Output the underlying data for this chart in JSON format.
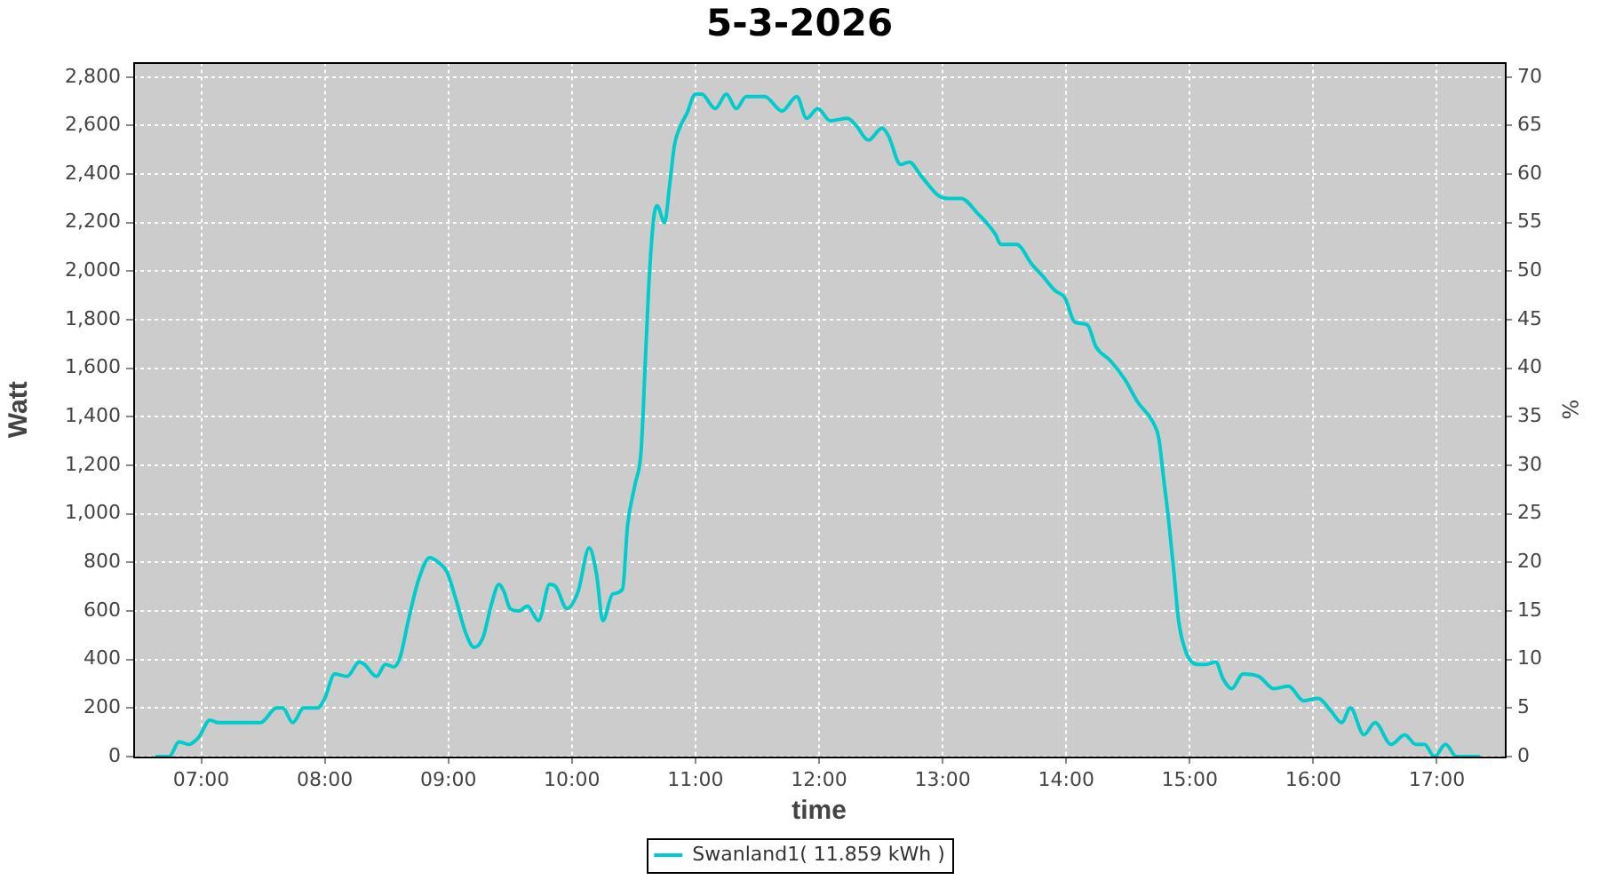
{
  "chart_data": {
    "type": "line",
    "title": "5-3-2026",
    "xlabel": "time",
    "ylabel": "Watt",
    "y2label": "%",
    "x": [
      6.64,
      6.74,
      6.82,
      6.9,
      6.98,
      7.07,
      7.14,
      7.48,
      7.61,
      7.66,
      7.74,
      7.83,
      7.94,
      8.0,
      8.08,
      8.18,
      8.28,
      8.32,
      8.42,
      8.49,
      8.56,
      8.61,
      8.68,
      8.76,
      8.85,
      8.92,
      8.99,
      9.06,
      9.14,
      9.21,
      9.28,
      9.35,
      9.41,
      9.45,
      9.5,
      9.57,
      9.64,
      9.73,
      9.82,
      9.87,
      9.96,
      10.05,
      10.14,
      10.2,
      10.25,
      10.33,
      10.41,
      10.45,
      10.51,
      10.56,
      10.59,
      10.62,
      10.66,
      10.69,
      10.75,
      10.79,
      10.83,
      10.88,
      10.93,
      11.0,
      11.05,
      11.16,
      11.25,
      11.33,
      11.41,
      11.56,
      11.7,
      11.82,
      11.9,
      11.99,
      12.09,
      12.23,
      12.3,
      12.4,
      12.51,
      12.56,
      12.66,
      12.73,
      12.83,
      12.97,
      13.04,
      13.15,
      13.28,
      13.43,
      13.47,
      13.6,
      13.72,
      13.81,
      13.91,
      13.99,
      14.07,
      14.17,
      14.24,
      14.36,
      14.48,
      14.58,
      14.7,
      14.75,
      14.79,
      14.83,
      14.87,
      14.91,
      14.97,
      15.06,
      15.13,
      15.21,
      15.27,
      15.34,
      15.43,
      15.56,
      15.68,
      15.8,
      15.92,
      16.04,
      16.14,
      16.23,
      16.3,
      16.41,
      16.5,
      16.63,
      16.74,
      16.83,
      16.9,
      16.98,
      17.07,
      17.16,
      17.34
    ],
    "series": [
      {
        "name": "Swanland1( 11.859 kWh )",
        "color": "#00cccc",
        "values": [
          0,
          0,
          60,
          50,
          80,
          150,
          140,
          140,
          200,
          200,
          140,
          200,
          200,
          240,
          340,
          330,
          390,
          380,
          330,
          380,
          370,
          410,
          570,
          730,
          820,
          800,
          760,
          650,
          510,
          450,
          490,
          630,
          710,
          680,
          610,
          600,
          620,
          560,
          710,
          700,
          610,
          680,
          860,
          750,
          560,
          670,
          690,
          950,
          1120,
          1260,
          1580,
          1920,
          2210,
          2270,
          2200,
          2350,
          2520,
          2600,
          2650,
          2730,
          2730,
          2670,
          2730,
          2670,
          2720,
          2720,
          2660,
          2720,
          2630,
          2670,
          2620,
          2630,
          2600,
          2540,
          2590,
          2560,
          2440,
          2450,
          2390,
          2310,
          2300,
          2300,
          2240,
          2150,
          2110,
          2110,
          2030,
          1980,
          1920,
          1890,
          1790,
          1780,
          1690,
          1630,
          1550,
          1460,
          1380,
          1310,
          1140,
          970,
          770,
          560,
          430,
          380,
          380,
          390,
          320,
          280,
          340,
          330,
          280,
          290,
          230,
          240,
          190,
          140,
          200,
          90,
          140,
          50,
          90,
          50,
          50,
          0,
          50,
          0,
          0
        ]
      }
    ],
    "xlim": [
      6.45,
      17.55
    ],
    "xticks": [
      {
        "value": 7,
        "label": "07:00"
      },
      {
        "value": 8,
        "label": "08:00"
      },
      {
        "value": 9,
        "label": "09:00"
      },
      {
        "value": 10,
        "label": "10:00"
      },
      {
        "value": 11,
        "label": "11:00"
      },
      {
        "value": 12,
        "label": "12:00"
      },
      {
        "value": 13,
        "label": "13:00"
      },
      {
        "value": 14,
        "label": "14:00"
      },
      {
        "value": 15,
        "label": "15:00"
      },
      {
        "value": 16,
        "label": "16:00"
      },
      {
        "value": 17,
        "label": "17:00"
      }
    ],
    "ylim": [
      0,
      2860
    ],
    "yticks": [
      0,
      200,
      400,
      600,
      800,
      {
        "value": 1000,
        "label": "1,000"
      },
      {
        "value": 1200,
        "label": "1,200"
      },
      {
        "value": 1400,
        "label": "1,400"
      },
      {
        "value": 1600,
        "label": "1,600"
      },
      {
        "value": 1800,
        "label": "1,800"
      },
      {
        "value": 2000,
        "label": "2,000"
      },
      {
        "value": 2200,
        "label": "2,200"
      },
      {
        "value": 2400,
        "label": "2,400"
      },
      {
        "value": 2600,
        "label": "2,600"
      },
      {
        "value": 2800,
        "label": "2,800"
      }
    ],
    "y2lim": [
      0,
      71.5
    ],
    "y2ticks": [
      0,
      5,
      10,
      15,
      20,
      25,
      30,
      35,
      40,
      45,
      50,
      55,
      60,
      65,
      70
    ],
    "grid": true,
    "legend": "bottom",
    "marker": "none",
    "line_style": "solid"
  }
}
